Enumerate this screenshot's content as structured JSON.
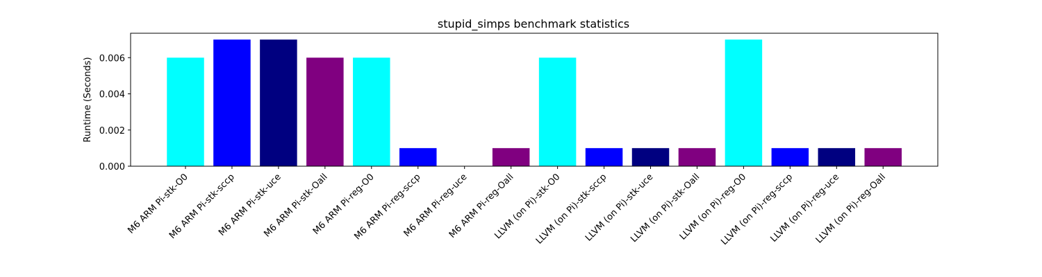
{
  "chart_data": {
    "type": "bar",
    "title": "stupid_simps benchmark statistics",
    "xlabel": "",
    "ylabel": "Runtime (Seconds)",
    "ylim": [
      0,
      0.00735
    ],
    "yticks": [
      "0.000",
      "0.002",
      "0.004",
      "0.006"
    ],
    "ytick_values": [
      0,
      0.002,
      0.004,
      0.006
    ],
    "categories": [
      "M6 ARM Pi-stk-O0",
      "M6 ARM Pi-stk-sccp",
      "M6 ARM Pi-stk-uce",
      "M6 ARM Pi-stk-Oall",
      "M6 ARM Pi-reg-O0",
      "M6 ARM Pi-reg-sccp",
      "M6 ARM Pi-reg-uce",
      "M6 ARM Pi-reg-Oall",
      "LLVM (on Pi)-stk-O0",
      "LLVM (on Pi)-stk-sccp",
      "LLVM (on Pi)-stk-uce",
      "LLVM (on Pi)-stk-Oall",
      "LLVM (on Pi)-reg-O0",
      "LLVM (on Pi)-reg-sccp",
      "LLVM (on Pi)-reg-uce",
      "LLVM (on Pi)-reg-Oall"
    ],
    "values": [
      0.006,
      0.007,
      0.007,
      0.006,
      0.006,
      0.001,
      0.0,
      0.001,
      0.006,
      0.001,
      0.001,
      0.001,
      0.007,
      0.001,
      0.001,
      0.001
    ],
    "colors": [
      "#00ffff",
      "#0000ff",
      "#000080",
      "#800080",
      "#00ffff",
      "#0000ff",
      "#000080",
      "#800080",
      "#00ffff",
      "#0000ff",
      "#000080",
      "#800080",
      "#00ffff",
      "#0000ff",
      "#000080",
      "#800080"
    ],
    "grid": false,
    "legend": "none"
  }
}
